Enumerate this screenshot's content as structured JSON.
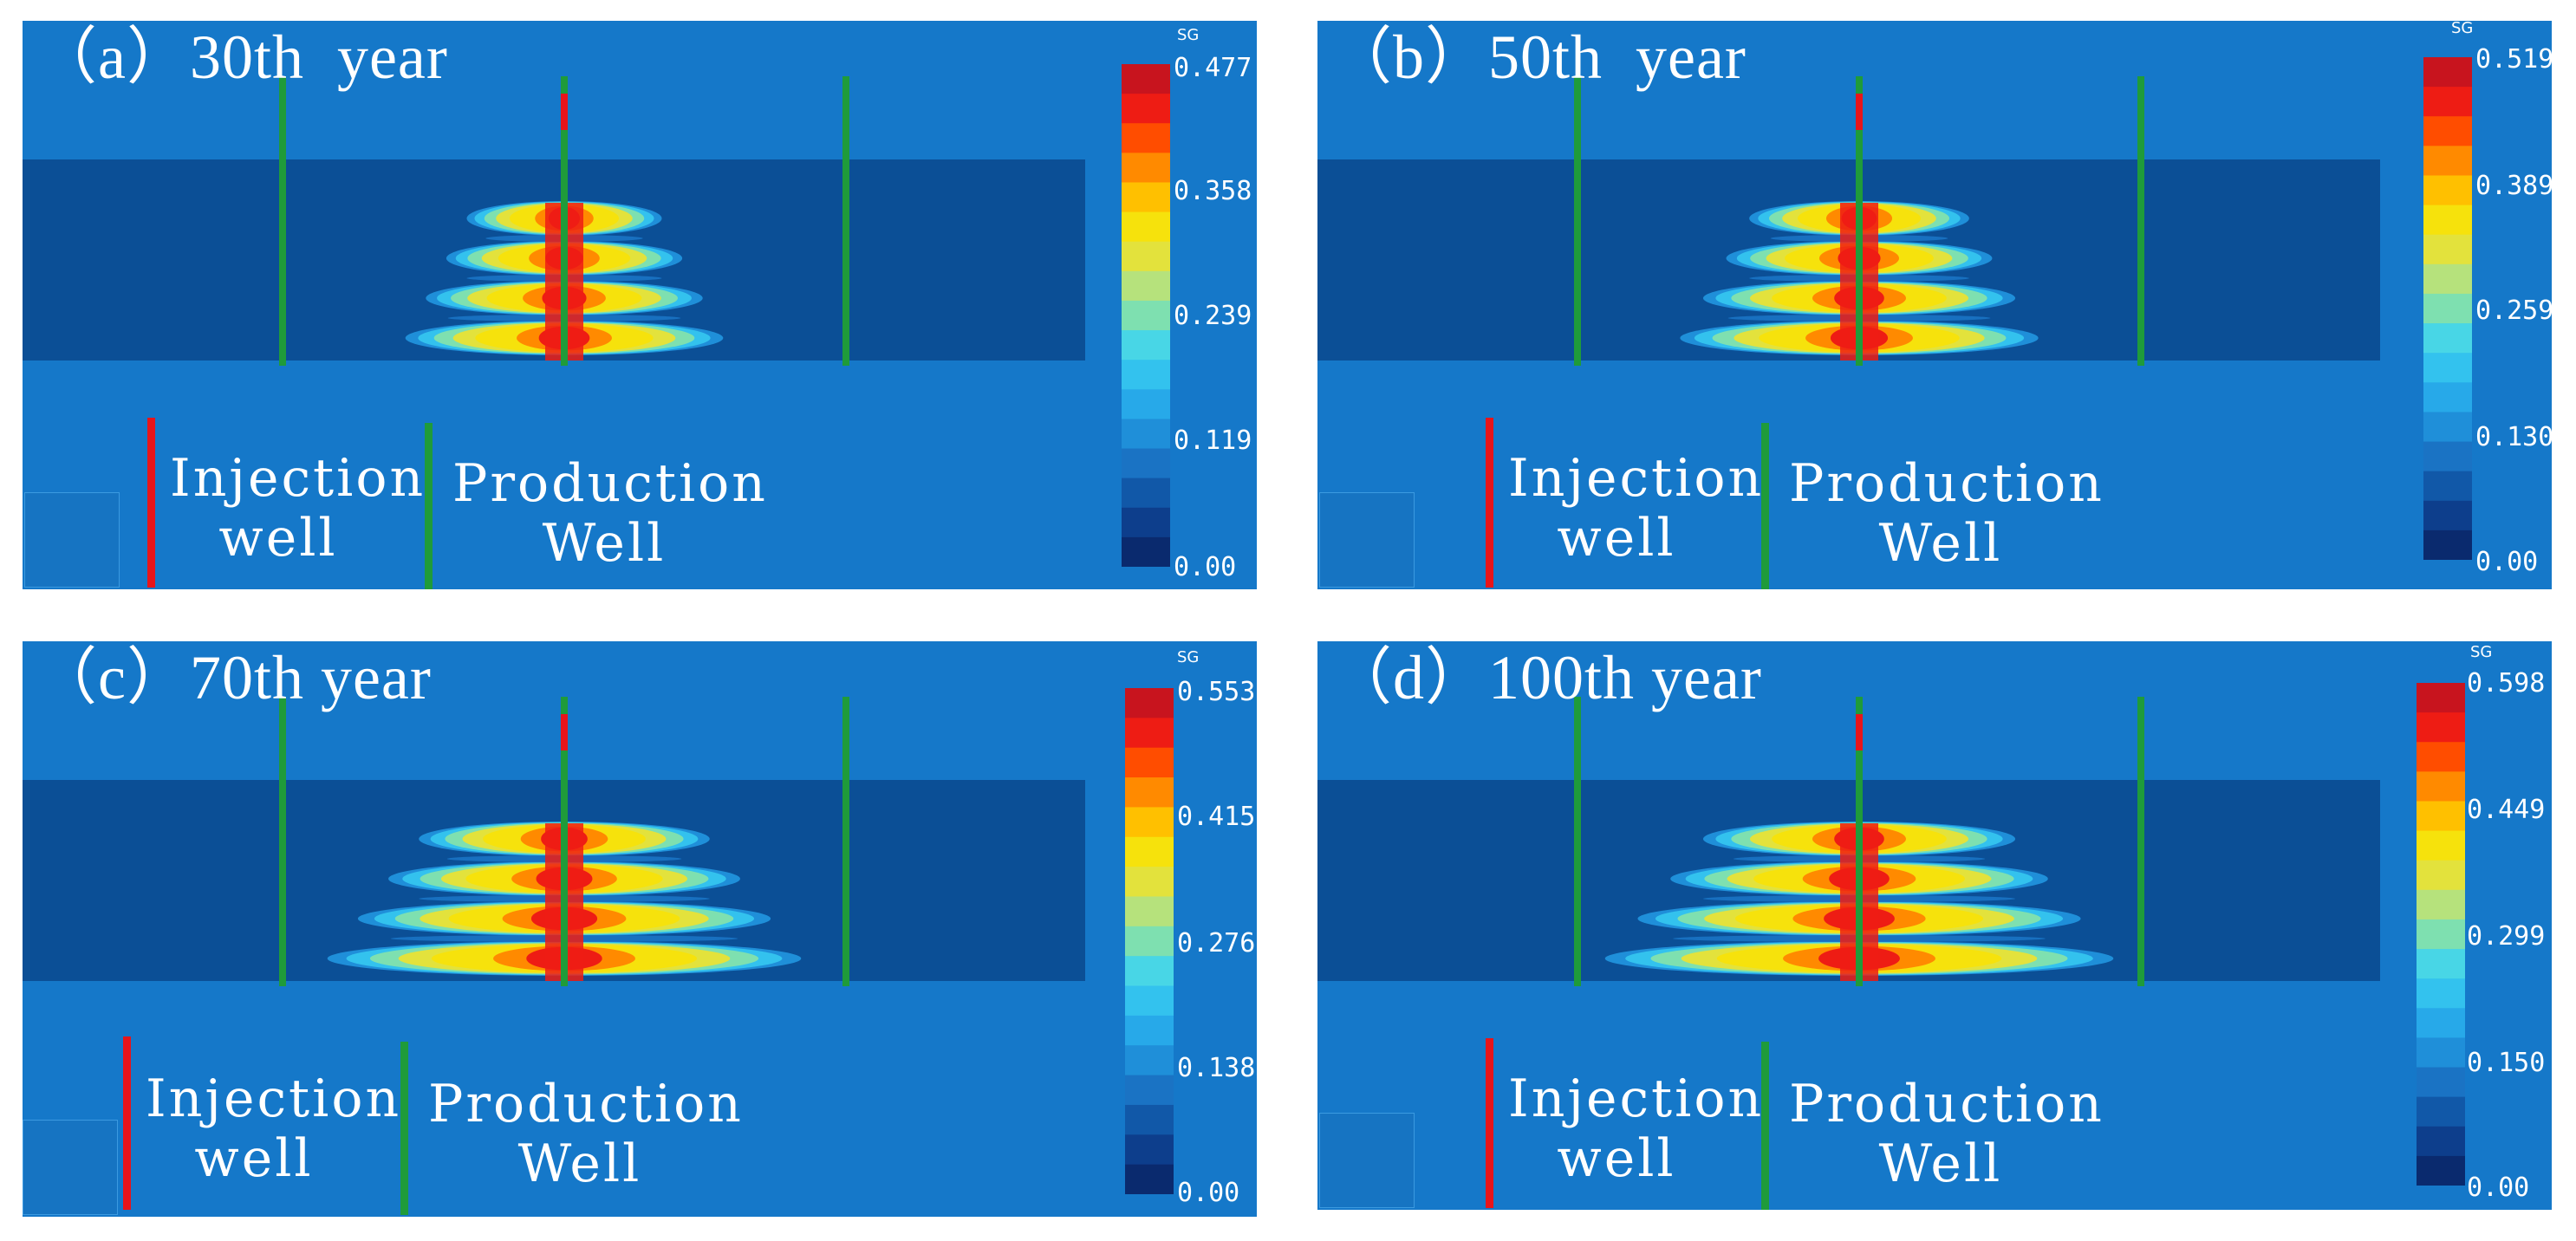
{
  "colors": {
    "background": "#1578c9",
    "reservoir": "#0b4f96",
    "injection_well": "#e8141a",
    "production_well": "#1f9b3a",
    "colormap": [
      "#0a2a6e",
      "#0d3e8c",
      "#1158a8",
      "#1a73c4",
      "#1f8fd9",
      "#27a9e9",
      "#33c2ee",
      "#48d6e6",
      "#7ee0b0",
      "#b6e27c",
      "#e3e23c",
      "#f6e20c",
      "#ffc000",
      "#ff8a00",
      "#ff4d00",
      "#ee1c14",
      "#c8141e"
    ]
  },
  "legend": {
    "injection_line1": "Injection",
    "injection_line2": "well",
    "production_line1": "Production",
    "production_line2": "Well"
  },
  "colorbar_label": "SG",
  "panels": [
    {
      "title": "（a）30th  year",
      "ticks": [
        "0.477",
        "0.358",
        "0.239",
        "0.119",
        "0.00"
      ],
      "max_value": 0.477,
      "plume_rel_width": 0.55
    },
    {
      "title": "（b）50th  year",
      "ticks": [
        "0.519",
        "0.389",
        "0.259",
        "0.130",
        "0.00"
      ],
      "max_value": 0.519,
      "plume_rel_width": 0.62
    },
    {
      "title": "（c）70th year",
      "ticks": [
        "0.553",
        "0.415",
        "0.276",
        "0.138",
        "0.00"
      ],
      "max_value": 0.553,
      "plume_rel_width": 0.82
    },
    {
      "title": "（d）100th year",
      "ticks": [
        "0.598",
        "0.449",
        "0.299",
        "0.150",
        "0.00"
      ],
      "max_value": 0.598,
      "plume_rel_width": 0.88
    }
  ]
}
